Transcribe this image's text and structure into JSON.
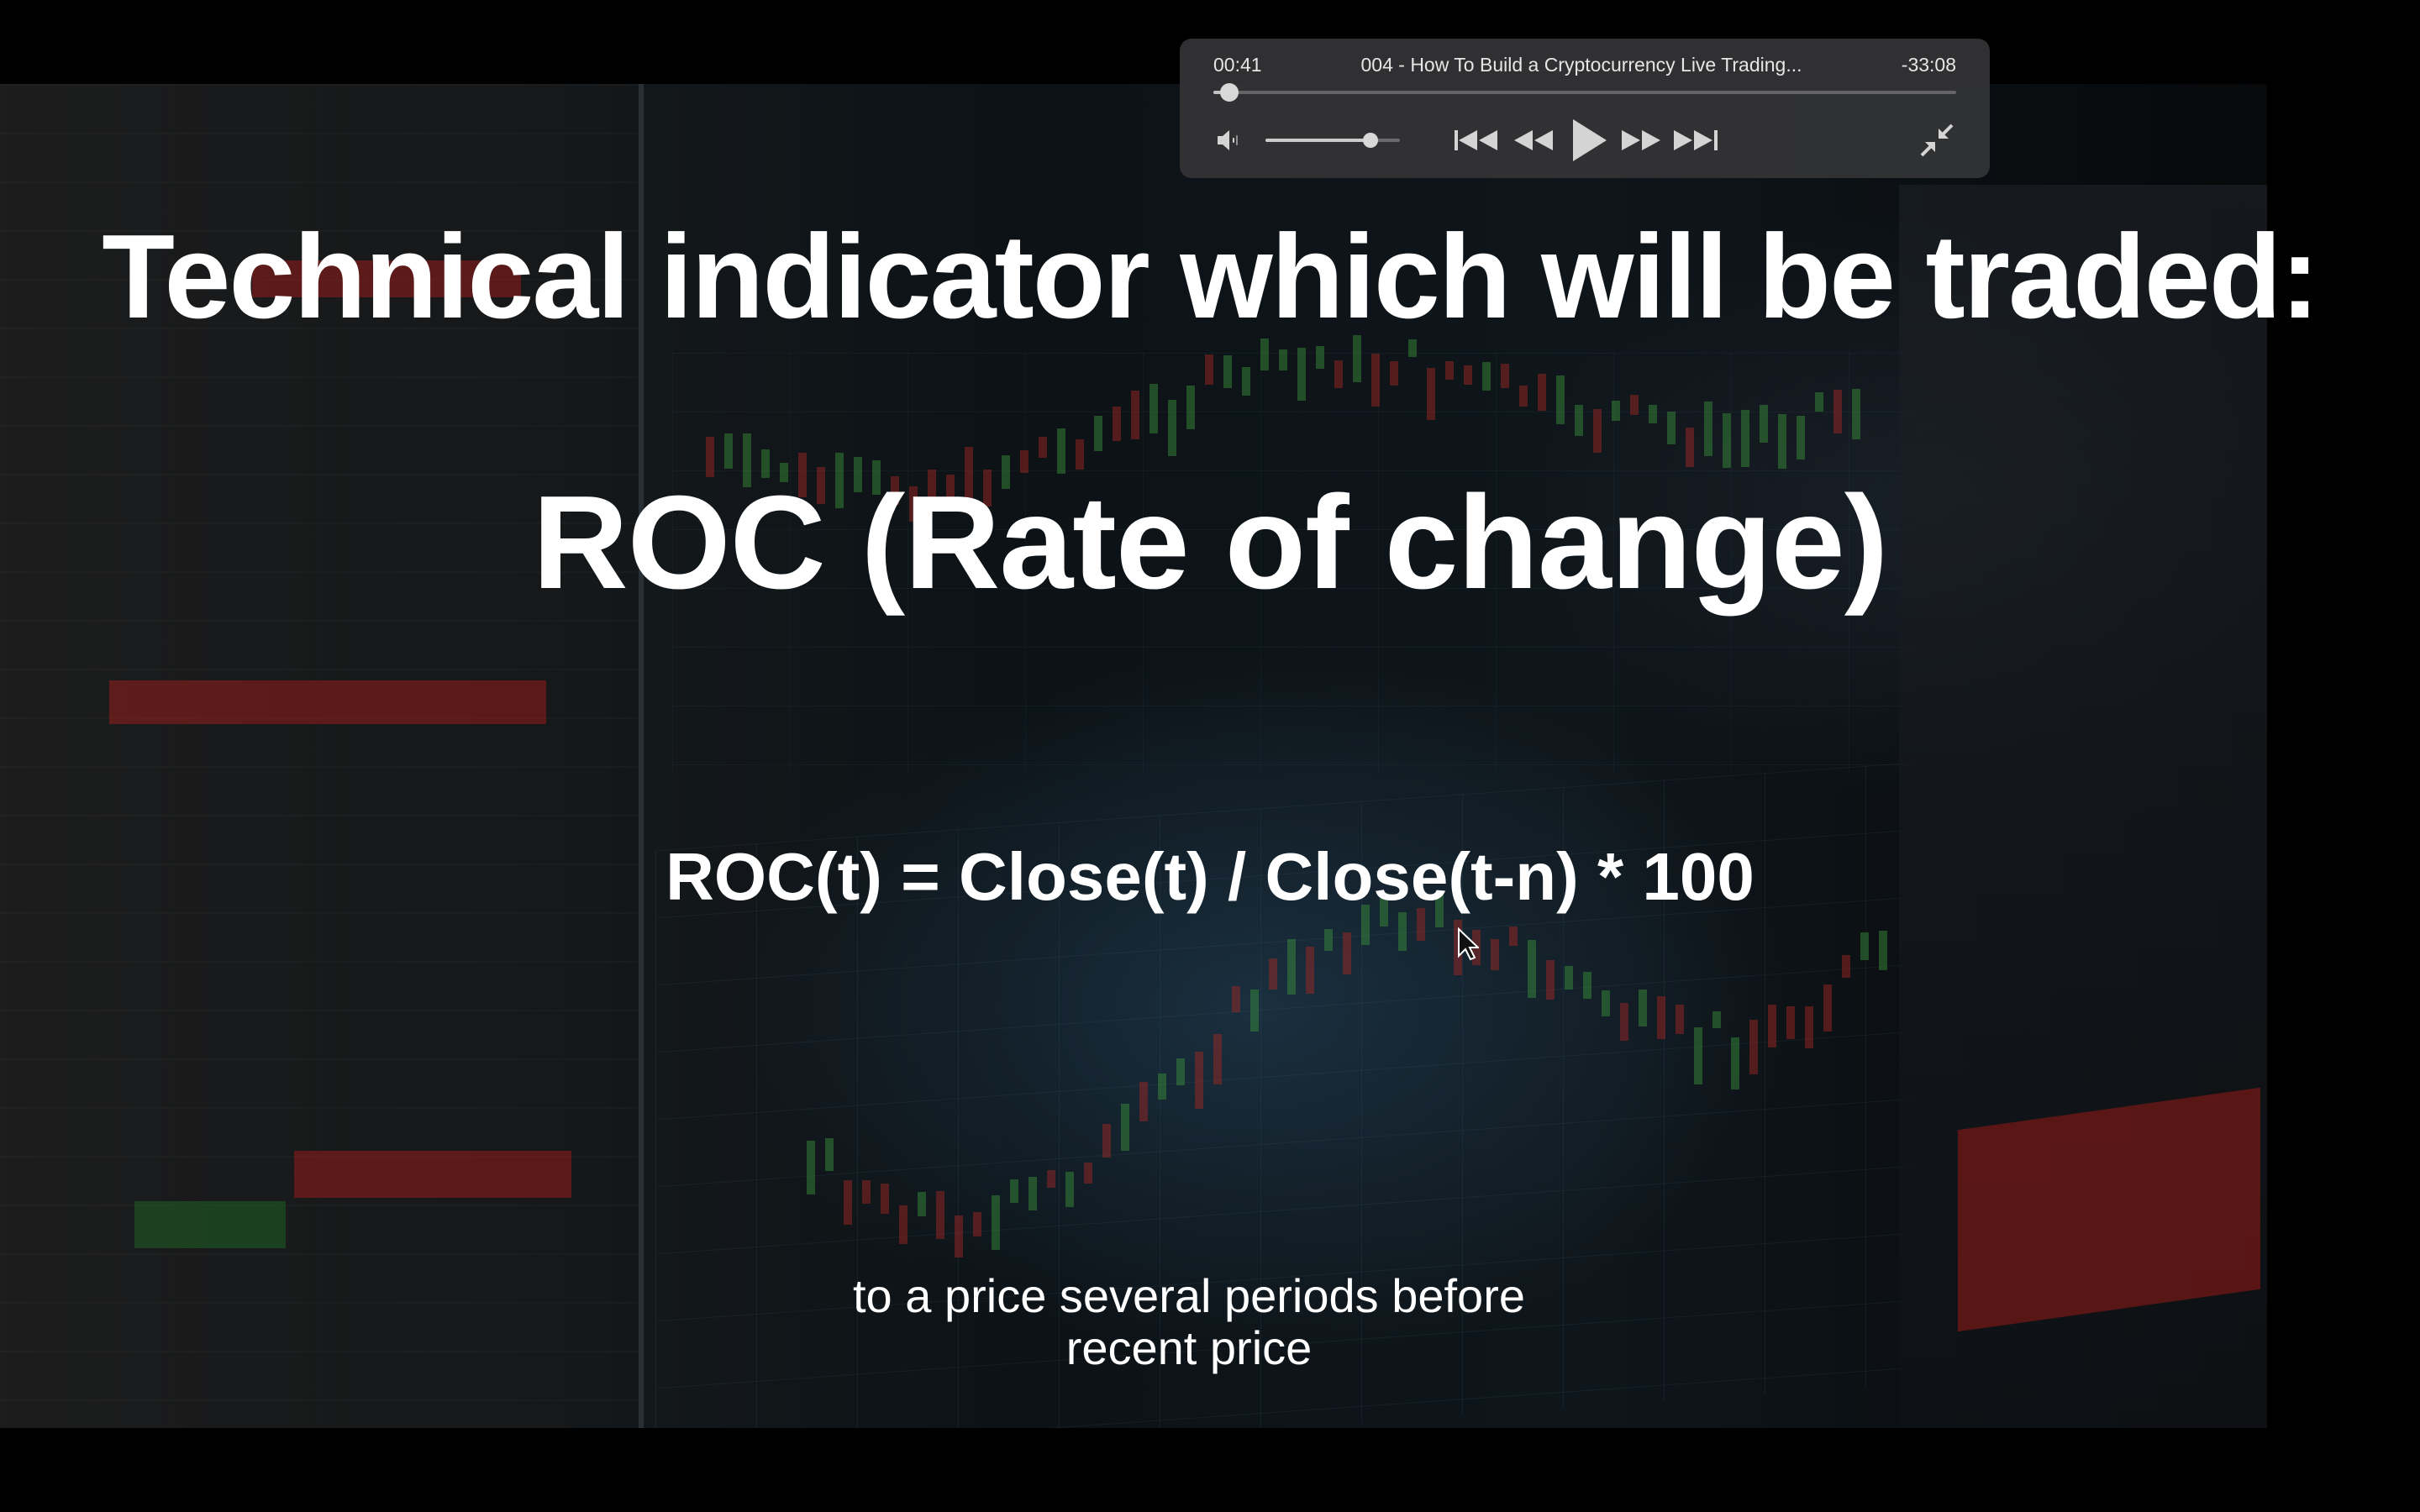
{
  "slide": {
    "title": "Technical indicator which will be traded:",
    "heading": "ROC (Rate of change)",
    "formula": "ROC(t) = Close(t) / Close(t-n) * 100"
  },
  "subtitles": {
    "line1": "to a price several periods before",
    "line2": "recent price"
  },
  "player": {
    "elapsed": "00:41",
    "title": "004 - How To Build a Cryptocurrency Live Trading...",
    "remaining": "-33:08",
    "progress": 0.021,
    "volume": 0.78,
    "icons": {
      "volume": "volume-low-icon",
      "skip_back": "skip-to-start-icon",
      "rewind": "rewind-icon",
      "play": "play-icon",
      "fast_forward": "fast-forward-icon",
      "skip_forward": "skip-to-end-icon",
      "exit_fullscreen": "exit-fullscreen-icon"
    },
    "accent": "#343436"
  }
}
